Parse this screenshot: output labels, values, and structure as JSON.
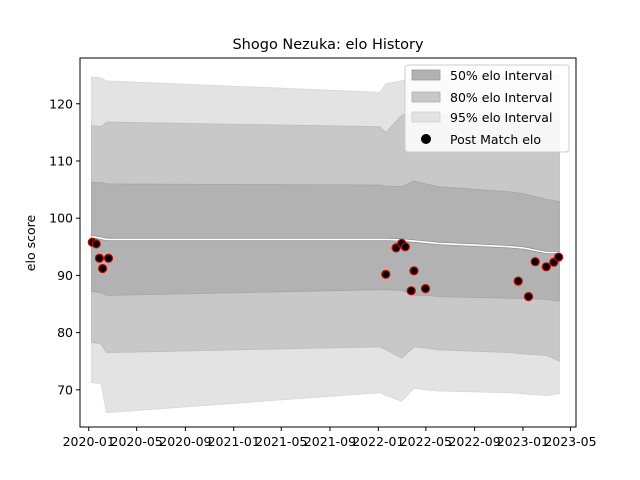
{
  "chart_data": {
    "type": "line",
    "title": "Shogo Nezuka: elo History",
    "xlabel": "",
    "ylabel": "elo score",
    "x_ticks": [
      "2020-01",
      "2020-05",
      "2020-09",
      "2021-01",
      "2021-05",
      "2021-09",
      "2022-01",
      "2022-05",
      "2022-09",
      "2023-01",
      "2023-05"
    ],
    "y_ticks": [
      70,
      80,
      90,
      100,
      110,
      120
    ],
    "xlim": [
      "2019-12-10",
      "2023-05-15"
    ],
    "ylim": [
      63.5,
      128
    ],
    "grid": false,
    "legend_position": "top-right",
    "legend": [
      {
        "label": "50% elo Interval",
        "color": "#b2b2b2"
      },
      {
        "label": "80% elo Interval",
        "color": "#c8c8c8"
      },
      {
        "label": "95% elo Interval",
        "color": "#e3e3e3"
      },
      {
        "label": "Post Match elo",
        "color": "#000000"
      }
    ],
    "band_dates": [
      "2020-01-08",
      "2020-02-01",
      "2020-02-15",
      "2022-01-05",
      "2022-01-20",
      "2022-03-01",
      "2022-04-01",
      "2022-05-01",
      "2022-06-01",
      "2022-12-01",
      "2023-01-01",
      "2023-03-01",
      "2023-04-03"
    ],
    "mean_line": [
      96.8,
      96.5,
      96.3,
      96.3,
      96.3,
      96.2,
      96.0,
      95.8,
      95.6,
      95.0,
      94.8,
      94.0,
      94.0
    ],
    "bands": {
      "p95": {
        "upper": [
          124.7,
          124.5,
          124.0,
          122.0,
          123.5,
          124.0,
          124.5,
          124.8,
          125.0,
          125.0,
          125.0,
          125.0,
          125.0
        ],
        "lower": [
          71.3,
          71.0,
          66.0,
          69.5,
          69.0,
          68.0,
          70.3,
          70.0,
          69.8,
          69.5,
          69.3,
          69.0,
          69.3
        ]
      },
      "p80": {
        "upper": [
          116.2,
          116.0,
          116.8,
          116.0,
          115.0,
          118.0,
          118.5,
          118.3,
          118.0,
          118.0,
          117.8,
          117.5,
          117.0
        ],
        "lower": [
          78.3,
          78.0,
          76.5,
          77.5,
          77.0,
          75.5,
          77.5,
          77.3,
          77.0,
          76.5,
          76.3,
          76.0,
          75.0
        ]
      },
      "p50": {
        "upper": [
          106.3,
          106.2,
          106.0,
          105.8,
          105.6,
          105.5,
          106.5,
          106.0,
          105.5,
          104.6,
          104.3,
          103.3,
          102.9
        ],
        "lower": [
          87.2,
          87.0,
          86.5,
          87.5,
          87.5,
          87.4,
          86.5,
          86.5,
          86.3,
          86.0,
          86.0,
          85.8,
          85.5
        ]
      }
    },
    "post_match_elo": [
      {
        "x": "2020-01-10",
        "y": 95.8
      },
      {
        "x": "2020-01-20",
        "y": 95.5
      },
      {
        "x": "2020-01-28",
        "y": 93.0
      },
      {
        "x": "2020-02-05",
        "y": 91.2
      },
      {
        "x": "2020-02-20",
        "y": 93.0
      },
      {
        "x": "2022-01-20",
        "y": 90.2
      },
      {
        "x": "2022-02-15",
        "y": 94.8
      },
      {
        "x": "2022-03-01",
        "y": 95.6
      },
      {
        "x": "2022-03-10",
        "y": 95.0
      },
      {
        "x": "2022-03-25",
        "y": 87.3
      },
      {
        "x": "2022-04-01",
        "y": 90.8
      },
      {
        "x": "2022-04-30",
        "y": 87.7
      },
      {
        "x": "2022-12-20",
        "y": 89.0
      },
      {
        "x": "2023-01-15",
        "y": 86.3
      },
      {
        "x": "2023-02-01",
        "y": 92.4
      },
      {
        "x": "2023-03-01",
        "y": 91.5
      },
      {
        "x": "2023-03-20",
        "y": 92.3
      },
      {
        "x": "2023-04-01",
        "y": 93.2
      }
    ]
  }
}
